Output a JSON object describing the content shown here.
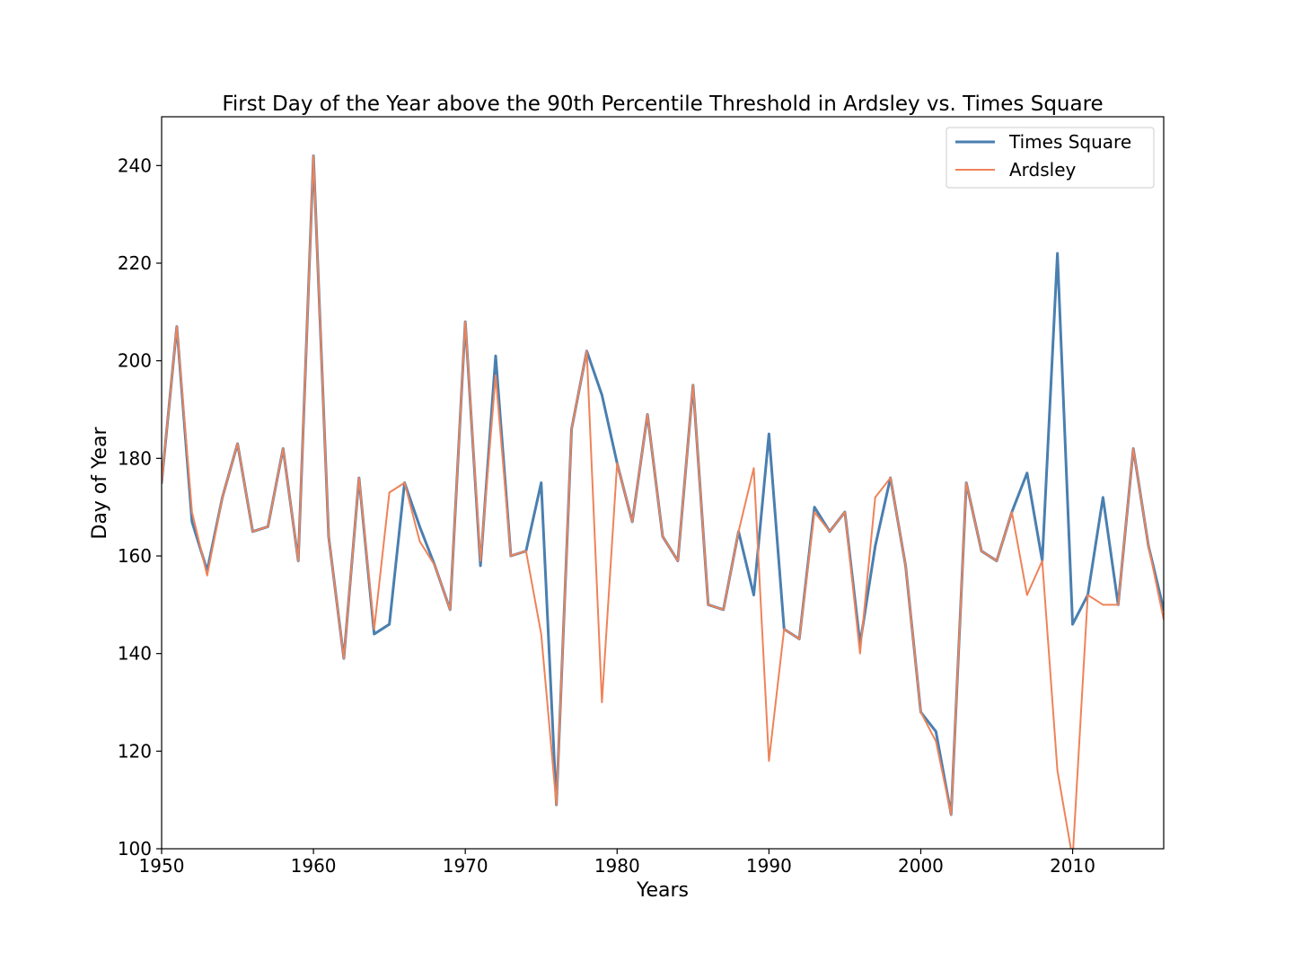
{
  "chart_data": {
    "type": "line",
    "title": "First Day of the Year above the 90th Percentile Threshold in Ardsley vs. Times Square",
    "xlabel": "Years",
    "ylabel": "Day of Year",
    "xlim": [
      1950,
      2016
    ],
    "ylim": [
      100,
      250
    ],
    "x_ticks": [
      1950,
      1960,
      1970,
      1980,
      1990,
      2000,
      2010
    ],
    "y_ticks": [
      100,
      120,
      140,
      160,
      180,
      200,
      220,
      240
    ],
    "legend_position": "top-right",
    "grid": false,
    "x": [
      1950,
      1951,
      1952,
      1953,
      1954,
      1955,
      1956,
      1957,
      1958,
      1959,
      1960,
      1961,
      1962,
      1963,
      1964,
      1965,
      1966,
      1967,
      1968,
      1969,
      1970,
      1971,
      1972,
      1973,
      1974,
      1975,
      1976,
      1977,
      1978,
      1979,
      1980,
      1981,
      1982,
      1983,
      1984,
      1985,
      1986,
      1987,
      1988,
      1989,
      1990,
      1991,
      1992,
      1993,
      1994,
      1995,
      1996,
      1997,
      1998,
      1999,
      2000,
      2001,
      2002,
      2003,
      2004,
      2005,
      2006,
      2007,
      2008,
      2009,
      2010,
      2011,
      2012,
      2013,
      2014,
      2015,
      2016
    ],
    "series": [
      {
        "name": "Times Square",
        "color": "#4a7fb0",
        "width": 3,
        "values": [
          175,
          207,
          167,
          157,
          172,
          183,
          165,
          166,
          182,
          159,
          242,
          164,
          139,
          176,
          144,
          146,
          175,
          166,
          158,
          149,
          208,
          158,
          201,
          160,
          161,
          175,
          109,
          186,
          202,
          193,
          179,
          167,
          189,
          164,
          159,
          195,
          150,
          149,
          165,
          152,
          185,
          145,
          143,
          170,
          165,
          169,
          142,
          162,
          176,
          158,
          128,
          124,
          107,
          175,
          161,
          159,
          169,
          177,
          159,
          222,
          146,
          152,
          172,
          150,
          182,
          162,
          149
        ]
      },
      {
        "name": "Ardsley",
        "color": "#ee8359",
        "width": 2,
        "values": [
          175,
          207,
          169,
          156,
          172,
          183,
          165,
          166,
          182,
          159,
          242,
          164,
          139,
          176,
          145,
          173,
          175,
          163,
          158,
          149,
          208,
          159,
          197,
          160,
          161,
          144,
          109,
          186,
          202,
          130,
          179,
          167,
          189,
          164,
          159,
          195,
          150,
          149,
          165,
          178,
          118,
          145,
          143,
          169,
          165,
          169,
          140,
          172,
          176,
          158,
          128,
          122,
          107,
          175,
          161,
          159,
          169,
          152,
          159,
          116,
          98,
          152,
          150,
          150,
          182,
          162,
          147
        ]
      }
    ]
  }
}
